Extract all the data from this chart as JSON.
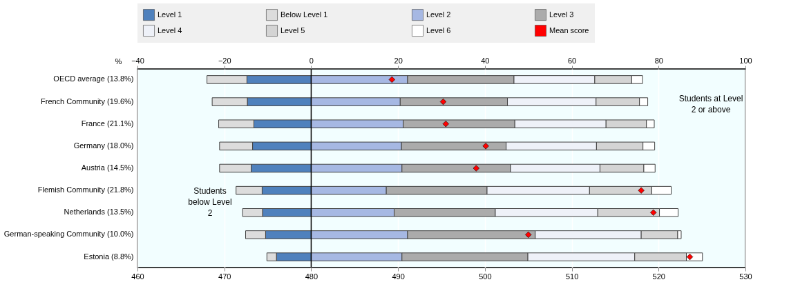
{
  "chart_data": {
    "type": "bar",
    "orientation": "horizontal",
    "stacked": true,
    "categories": [
      "OECD average (13.8%)",
      "French Community (19.6%)",
      "France (21.1%)",
      "Germany (18.0%)",
      "Austria (14.5%)",
      "Flemish Community (21.8%)",
      "Netherlands (13.5%)",
      "German-speaking Community (10.0%)",
      "Estonia (8.8%)"
    ],
    "x2label": "%",
    "x2lim": [
      -40,
      100
    ],
    "x2ticks": [
      -40,
      -20,
      0,
      20,
      40,
      60,
      80,
      100
    ],
    "xlim": [
      460,
      530
    ],
    "xticks": [
      460,
      470,
      480,
      490,
      500,
      510,
      520,
      530
    ],
    "grid": "x",
    "legend": "top",
    "ref_lines": [
      {
        "axis": "x2",
        "value": 0,
        "color": "#000000"
      }
    ],
    "annotations": [
      "Students at Level 2 or above",
      "Students below Level 2"
    ],
    "series": [
      {
        "name": "Level 1",
        "color": "#4f81bd",
        "axis": "x2",
        "values": [
          -14.8,
          -14.7,
          -13.2,
          -13.5,
          -13.8,
          -11.3,
          -11.2,
          -10.5,
          -8.0
        ]
      },
      {
        "name": "Below Level 1",
        "color": "#dcdcdc",
        "axis": "x2",
        "values": [
          -9.2,
          -8.1,
          -8.1,
          -7.6,
          -7.3,
          -6.0,
          -4.6,
          -4.6,
          -2.2
        ]
      },
      {
        "name": "Level 2",
        "color": "#a6b8e3",
        "axis": "x2",
        "values": [
          22.2,
          20.5,
          21.2,
          20.8,
          20.9,
          17.3,
          19.1,
          22.2,
          20.9
        ]
      },
      {
        "name": "Level 3",
        "color": "#ababab",
        "axis": "x2",
        "values": [
          24.5,
          24.7,
          25.7,
          24.1,
          25.0,
          23.2,
          23.3,
          29.4,
          29.0
        ]
      },
      {
        "name": "Level 4",
        "color": "#eef1f8",
        "axis": "x2",
        "values": [
          18.6,
          20.4,
          21.0,
          20.8,
          20.6,
          23.6,
          23.6,
          24.4,
          24.6
        ]
      },
      {
        "name": "Level 5",
        "color": "#d4d4d4",
        "axis": "x2",
        "values": [
          8.5,
          10.0,
          9.3,
          10.7,
          10.1,
          14.3,
          14.2,
          8.4,
          11.9
        ]
      },
      {
        "name": "Level 6",
        "color": "#ffffff",
        "axis": "x2",
        "values": [
          2.5,
          1.9,
          1.8,
          2.7,
          2.6,
          4.5,
          4.3,
          0.8,
          3.7
        ]
      },
      {
        "name": "Mean score",
        "type": "scatter",
        "marker": "diamond",
        "color": "#ff0000",
        "values": [
          489.3,
          495.2,
          495.5,
          500.1,
          499.0,
          518.0,
          519.4,
          505.0,
          523.6
        ]
      }
    ]
  }
}
